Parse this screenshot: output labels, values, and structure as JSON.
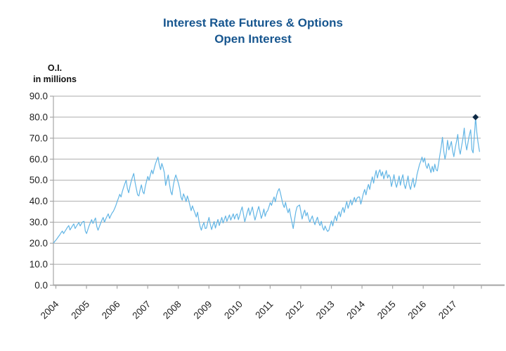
{
  "header": {
    "title_line1": "Interest Rate Futures & Options",
    "title_line2": "Open Interest"
  },
  "axis_unit": {
    "line1": "O.I.",
    "line2": "in millions"
  },
  "colors": {
    "title": "#17568F",
    "line": "#62B5E5",
    "grid": "#ABABAB",
    "axis": "#A6A6A6",
    "tick_label": "#1F1F1F",
    "marker": "#0E2A45"
  },
  "chart_data": {
    "type": "line",
    "title": "Interest Rate Futures & Options Open Interest",
    "xlabel": "",
    "ylabel": "O.I. in millions",
    "ylim": [
      0,
      90
    ],
    "grid": "horizontal",
    "legend_position": "none",
    "y_ticks": [
      0,
      10,
      20,
      30,
      40,
      50,
      60,
      70,
      80,
      90
    ],
    "y_tick_labels": [
      "0.0",
      "10.0",
      "20.0",
      "30.0",
      "40.0",
      "50.0",
      "60.0",
      "70.0",
      "80.0",
      "90.0"
    ],
    "x_ticks": [
      2004,
      2005,
      2006,
      2007,
      2008,
      2009,
      2010,
      2011,
      2012,
      2013,
      2014,
      2015,
      2016,
      2017
    ],
    "series_name": "Open Interest (millions)",
    "x_start": 2004,
    "points_per_year": 24,
    "values": [
      20.0,
      20.8,
      21.5,
      22.3,
      23.2,
      24.0,
      25.0,
      25.8,
      24.6,
      25.6,
      26.6,
      27.6,
      28.4,
      26.3,
      27.3,
      28.3,
      29.2,
      27.0,
      28.0,
      29.0,
      29.8,
      28.2,
      29.3,
      30.2,
      30.4,
      25.8,
      24.6,
      26.5,
      28.3,
      29.8,
      31.2,
      29.4,
      30.8,
      32.0,
      28.0,
      26.2,
      27.8,
      29.5,
      31.0,
      32.3,
      30.0,
      31.5,
      32.8,
      34.0,
      31.8,
      33.2,
      34.4,
      35.2,
      36.5,
      38.0,
      39.8,
      41.5,
      43.3,
      42.0,
      44.5,
      46.5,
      48.3,
      50.0,
      46.0,
      44.0,
      47.0,
      49.5,
      51.5,
      53.2,
      49.0,
      46.0,
      43.0,
      42.5,
      45.5,
      47.8,
      44.5,
      43.5,
      47.0,
      49.5,
      51.8,
      50.0,
      52.5,
      54.8,
      53.0,
      55.5,
      57.8,
      59.5,
      61.0,
      57.5,
      55.0,
      58.0,
      56.0,
      53.5,
      47.5,
      50.0,
      52.5,
      48.0,
      44.5,
      43.0,
      47.5,
      50.5,
      52.5,
      50.5,
      48.5,
      46.0,
      42.0,
      40.5,
      43.5,
      42.0,
      39.8,
      42.5,
      40.5,
      38.0,
      35.5,
      37.8,
      36.0,
      34.3,
      32.5,
      34.8,
      31.0,
      28.0,
      26.2,
      28.5,
      29.8,
      27.0,
      27.2,
      30.0,
      32.3,
      29.0,
      26.5,
      28.5,
      30.3,
      27.2,
      29.3,
      31.3,
      28.4,
      30.3,
      32.3,
      29.6,
      31.3,
      33.0,
      30.4,
      32.0,
      33.5,
      31.0,
      32.5,
      34.0,
      31.5,
      33.3,
      34.0,
      31.2,
      33.2,
      35.5,
      37.3,
      33.8,
      30.2,
      32.5,
      34.8,
      36.8,
      33.3,
      35.3,
      37.3,
      33.8,
      31.0,
      33.2,
      35.5,
      37.5,
      34.8,
      31.8,
      33.8,
      36.3,
      32.8,
      34.8,
      35.5,
      37.3,
      39.3,
      38.0,
      40.3,
      42.0,
      39.7,
      42.8,
      44.8,
      46.0,
      43.8,
      41.0,
      38.5,
      37.0,
      39.5,
      36.5,
      34.5,
      36.5,
      33.0,
      30.0,
      27.0,
      31.0,
      35.0,
      37.3,
      37.8,
      38.2,
      35.0,
      31.5,
      34.0,
      35.8,
      33.0,
      34.6,
      32.0,
      30.0,
      31.6,
      33.0,
      30.4,
      28.8,
      30.8,
      32.4,
      29.8,
      28.4,
      30.4,
      27.6,
      26.2,
      28.2,
      26.6,
      25.6,
      26.2,
      28.6,
      30.6,
      28.2,
      31.0,
      33.0,
      30.6,
      33.4,
      35.0,
      32.6,
      35.4,
      37.0,
      34.6,
      37.4,
      39.8,
      36.6,
      38.6,
      40.6,
      38.2,
      40.0,
      41.8,
      39.6,
      41.4,
      42.0,
      42.0,
      38.6,
      41.0,
      43.6,
      45.6,
      43.0,
      46.0,
      48.0,
      45.6,
      49.0,
      51.6,
      48.6,
      52.0,
      54.6,
      51.0,
      53.6,
      55.0,
      52.0,
      54.0,
      50.6,
      52.6,
      54.6,
      51.0,
      52.6,
      51.4,
      47.0,
      49.6,
      52.6,
      49.0,
      46.6,
      49.0,
      52.0,
      47.6,
      50.6,
      52.6,
      48.0,
      46.0,
      49.0,
      52.0,
      47.6,
      45.6,
      48.6,
      51.0,
      46.6,
      48.6,
      52.6,
      55.0,
      57.4,
      59.0,
      61.0,
      58.6,
      60.6,
      57.0,
      55.6,
      58.0,
      56.0,
      53.6,
      56.6,
      54.0,
      57.6,
      55.0,
      54.4,
      58.0,
      62.0,
      66.0,
      70.4,
      64.0,
      60.0,
      63.0,
      69.0,
      64.4,
      66.4
    ],
    "tail_points": [
      [
        2017.0,
        68.4
      ],
      [
        2017.04,
        64.0
      ],
      [
        2017.08,
        61.2
      ],
      [
        2017.13,
        65.6
      ],
      [
        2017.17,
        68.6
      ],
      [
        2017.21,
        71.8
      ],
      [
        2017.25,
        65.0
      ],
      [
        2017.29,
        62.4
      ],
      [
        2017.33,
        66.0
      ],
      [
        2017.38,
        70.0
      ],
      [
        2017.42,
        74.8
      ],
      [
        2017.46,
        68.0
      ],
      [
        2017.5,
        64.4
      ],
      [
        2017.54,
        67.6
      ],
      [
        2017.58,
        71.0
      ],
      [
        2017.63,
        74.0
      ],
      [
        2017.65,
        70.0
      ],
      [
        2017.67,
        64.5
      ],
      [
        2017.71,
        63.0
      ],
      [
        2017.74,
        69.0
      ],
      [
        2017.77,
        75.0
      ],
      [
        2017.79,
        80.0
      ],
      [
        2017.83,
        73.0
      ],
      [
        2017.87,
        68.0
      ],
      [
        2017.92,
        63.5
      ]
    ],
    "marker_point": {
      "x": 2017.79,
      "y": 80.0
    }
  }
}
